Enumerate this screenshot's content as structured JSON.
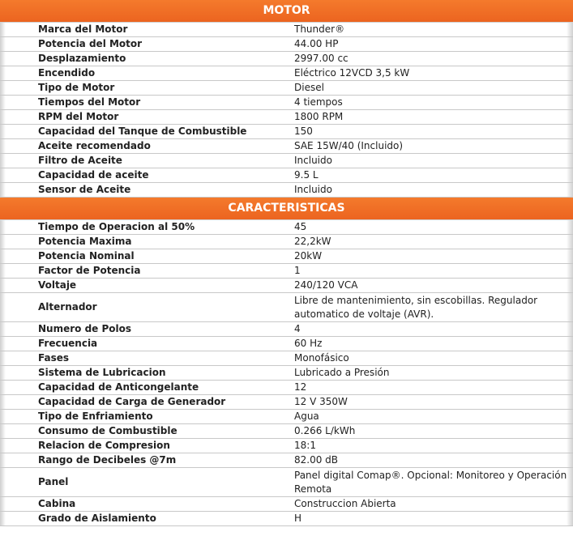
{
  "sections": [
    {
      "title": "MOTOR",
      "rows": [
        {
          "label": "Marca del Motor",
          "value": "Thunder®"
        },
        {
          "label": "Potencia del Motor",
          "value": "44.00 HP"
        },
        {
          "label": "Desplazamiento",
          "value": "2997.00 cc"
        },
        {
          "label": "Encendido",
          "value": "Eléctrico 12VCD 3,5 kW"
        },
        {
          "label": "Tipo de Motor",
          "value": "Diesel"
        },
        {
          "label": "Tiempos del Motor",
          "value": "4 tiempos"
        },
        {
          "label": "RPM del Motor",
          "value": "1800 RPM"
        },
        {
          "label": "Capacidad del Tanque de Combustible",
          "value": "150"
        },
        {
          "label": "Aceite recomendado",
          "value": "SAE 15W/40 (Incluido)"
        },
        {
          "label": "Filtro de Aceite",
          "value": "Incluido"
        },
        {
          "label": "Capacidad de aceite",
          "value": "9.5 L"
        },
        {
          "label": "Sensor de Aceite",
          "value": "Incluido"
        }
      ]
    },
    {
      "title": "CARACTERISTICAS",
      "rows": [
        {
          "label": "Tiempo de Operacion al 50%",
          "value": "45"
        },
        {
          "label": "Potencia Maxima",
          "value": "22,2kW"
        },
        {
          "label": "Potencia Nominal",
          "value": "20kW"
        },
        {
          "label": "Factor de Potencia",
          "value": "1"
        },
        {
          "label": "Voltaje",
          "value": "240/120 VCA"
        },
        {
          "label": "Alternador",
          "value": "Libre de mantenimiento, sin escobillas. Regulador automatico de voltaje (AVR).",
          "tall": true
        },
        {
          "label": "Numero de Polos",
          "value": "4"
        },
        {
          "label": "Frecuencia",
          "value": "60 Hz"
        },
        {
          "label": "Fases",
          "value": "Monofásico"
        },
        {
          "label": "Sistema de Lubricacion",
          "value": "Lubricado a Presión"
        },
        {
          "label": "Capacidad de Anticongelante",
          "value": "12"
        },
        {
          "label": "Capacidad de Carga de Generador",
          "value": "12 V 350W"
        },
        {
          "label": "Tipo de Enfriamiento",
          "value": "Agua"
        },
        {
          "label": "Consumo de Combustible",
          "value": "0.266 L/kWh"
        },
        {
          "label": "Relacion de Compresion",
          "value": "18:1"
        },
        {
          "label": "Rango de Decibeles @7m",
          "value": "82.00 dB"
        },
        {
          "label": "Panel",
          "value": "Panel digital Comap®. Opcional: Monitoreo y Operación Remota",
          "tall": true
        },
        {
          "label": "Cabina",
          "value": "Construccion Abierta"
        },
        {
          "label": "Grado de Aislamiento",
          "value": "H"
        }
      ]
    }
  ],
  "colors": {
    "header": "#ef6b24"
  }
}
